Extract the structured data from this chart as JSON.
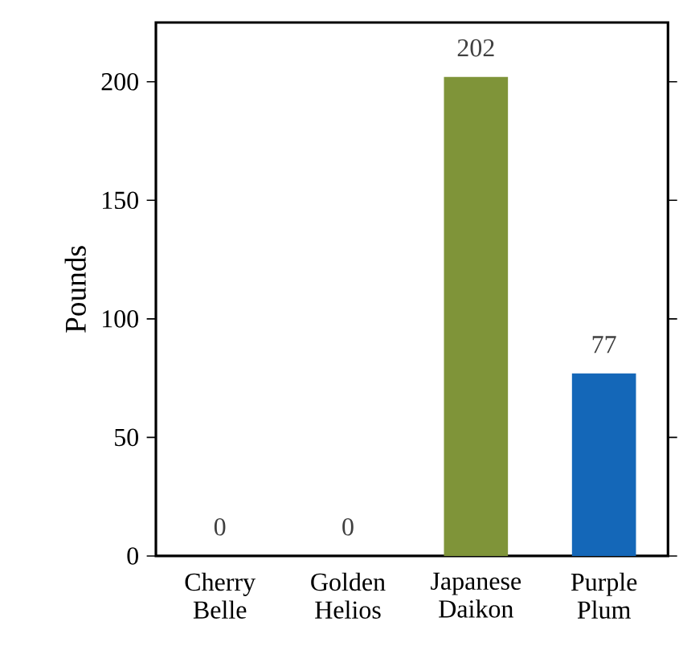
{
  "chart_data": {
    "type": "bar",
    "ylabel": "Pounds",
    "categories": [
      "Cherry Belle",
      "Golden Helios",
      "Japanese Daikon",
      "Purple Plum"
    ],
    "values": [
      0,
      0,
      202,
      77
    ],
    "colors": [
      "#c0504d",
      "#e0b030",
      "#7f9439",
      "#1467b8"
    ],
    "ylim": [
      0,
      225
    ],
    "yticks": [
      0,
      50,
      100,
      150,
      200
    ],
    "data_labels": true
  }
}
